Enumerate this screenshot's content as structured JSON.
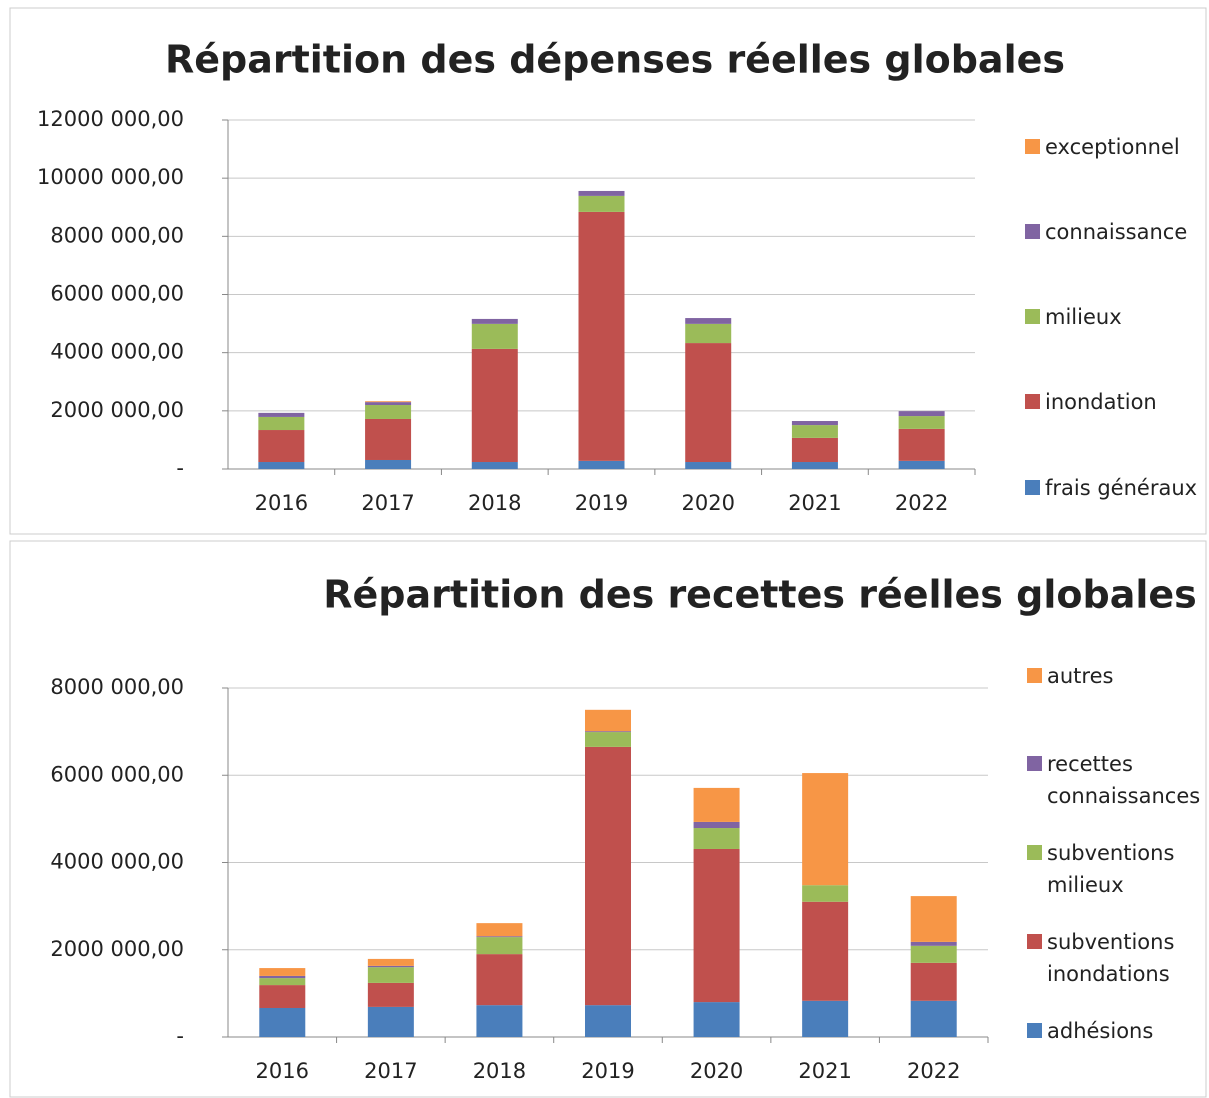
{
  "chart_data": [
    {
      "type": "bar",
      "stacked": true,
      "title": "Répartition des dépenses réelles globales",
      "categories": [
        "2016",
        "2017",
        "2018",
        "2019",
        "2020",
        "2021",
        "2022"
      ],
      "series": [
        {
          "name": "frais généraux",
          "color": "#4a7ebb",
          "values": [
            240000,
            310000,
            240000,
            280000,
            240000,
            240000,
            280000
          ]
        },
        {
          "name": "inondation",
          "color": "#c0504d",
          "values": [
            1100000,
            1410000,
            3890000,
            8560000,
            4090000,
            830000,
            1100000
          ]
        },
        {
          "name": "milieux",
          "color": "#9bbb59",
          "values": [
            450000,
            480000,
            860000,
            550000,
            660000,
            440000,
            440000
          ]
        },
        {
          "name": "connaissance",
          "color": "#8064a2",
          "values": [
            140000,
            100000,
            170000,
            170000,
            200000,
            140000,
            170000
          ]
        },
        {
          "name": "exceptionnel",
          "color": "#f79646",
          "values": [
            0,
            30000,
            0,
            0,
            0,
            0,
            0
          ]
        }
      ],
      "ylim": [
        0,
        12000000
      ],
      "yticks": [
        {
          "value": 0,
          "label": "-"
        },
        {
          "value": 2000000,
          "label": "2000 000,00"
        },
        {
          "value": 4000000,
          "label": "4000 000,00"
        },
        {
          "value": 6000000,
          "label": "6000 000,00"
        },
        {
          "value": 8000000,
          "label": "8000 000,00"
        },
        {
          "value": 10000000,
          "label": "10000 000,00"
        },
        {
          "value": 12000000,
          "label": "12000 000,00"
        }
      ],
      "grid": true,
      "legend": "right"
    },
    {
      "type": "bar",
      "stacked": true,
      "title": "Répartition des recettes réelles globales",
      "categories": [
        "2016",
        "2017",
        "2018",
        "2019",
        "2020",
        "2021",
        "2022"
      ],
      "series": [
        {
          "name": "adhésions",
          "color": "#4a7ebb",
          "values": [
            665000,
            690000,
            730000,
            730000,
            800000,
            830000,
            830000
          ]
        },
        {
          "name": "subventions inondations",
          "color": "#c0504d",
          "values": [
            525000,
            550000,
            1170000,
            5920000,
            3510000,
            2270000,
            870000
          ]
        },
        {
          "name": "subventions milieux",
          "color": "#9bbb59",
          "values": [
            160000,
            360000,
            390000,
            340000,
            480000,
            380000,
            390000
          ]
        },
        {
          "name": "recettes connaissances",
          "color": "#8064a2",
          "values": [
            50000,
            30000,
            20000,
            20000,
            140000,
            0,
            90000
          ]
        },
        {
          "name": "autres",
          "color": "#f79646",
          "values": [
            180000,
            160000,
            300000,
            490000,
            780000,
            2570000,
            1050000
          ]
        }
      ],
      "ylim": [
        0,
        8000000
      ],
      "yticks": [
        {
          "value": 0,
          "label": "-"
        },
        {
          "value": 2000000,
          "label": "2000 000,00"
        },
        {
          "value": 4000000,
          "label": "4000 000,00"
        },
        {
          "value": 6000000,
          "label": "6000 000,00"
        },
        {
          "value": 8000000,
          "label": "8000 000,00"
        }
      ],
      "grid": true,
      "legend": "right"
    }
  ]
}
